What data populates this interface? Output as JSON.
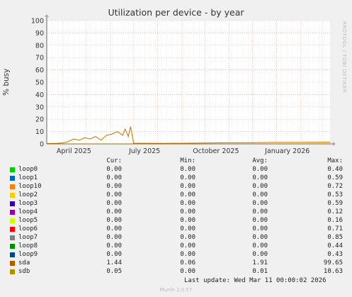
{
  "header": {
    "title": "Utilization per device - by year",
    "side_text": "RRDTOOL / TOBI OETIKER"
  },
  "chart_data": {
    "type": "line",
    "title": "Utilization per device - by year",
    "ylabel": "% busy",
    "xlabel": "",
    "ylim": [
      0,
      100
    ],
    "yticks": [
      0,
      10,
      20,
      30,
      40,
      50,
      60,
      70,
      80,
      90,
      100
    ],
    "xticks": [
      "April 2025",
      "July 2025",
      "October 2025",
      "January 2026"
    ],
    "grid": true,
    "series": [
      {
        "name": "sda",
        "color": "#cc7000",
        "x": [
          "2025-03-11",
          "2025-03-25",
          "2025-04-01",
          "2025-04-08",
          "2025-04-15",
          "2025-04-22",
          "2025-04-29",
          "2025-05-06",
          "2025-05-13",
          "2025-05-20",
          "2025-05-27",
          "2025-06-03",
          "2025-06-10",
          "2025-06-17",
          "2025-06-20",
          "2025-06-24",
          "2025-06-27",
          "2025-07-01",
          "2025-07-15",
          "2025-08-01",
          "2025-09-01",
          "2025-10-01",
          "2025-11-01",
          "2025-12-01",
          "2026-01-01",
          "2026-02-01",
          "2026-03-11"
        ],
        "values": [
          0.3,
          0.5,
          0.8,
          2,
          4,
          3,
          5,
          4,
          6,
          3,
          7,
          8,
          10,
          7,
          12,
          6,
          14,
          0.5,
          0.5,
          0.4,
          0.5,
          0.7,
          0.9,
          1.0,
          1.2,
          1.3,
          1.44
        ]
      },
      {
        "name": "sdb",
        "color": "#8f6e00",
        "x": [
          "2025-03-11",
          "2025-07-01",
          "2025-11-01",
          "2026-03-11"
        ],
        "values": [
          0.01,
          0.01,
          0.02,
          0.05
        ]
      }
    ],
    "legend": {
      "headers": {
        "cur": "Cur:",
        "min": "Min:",
        "avg": "Avg:",
        "max": "Max:"
      },
      "rows": [
        {
          "name": "loop0",
          "color": "#00cc00",
          "cur": "0.00",
          "min": "0.00",
          "avg": "0.00",
          "max": "0.40"
        },
        {
          "name": "loop1",
          "color": "#0066b3",
          "cur": "0.00",
          "min": "0.00",
          "avg": "0.00",
          "max": "0.59"
        },
        {
          "name": "loop10",
          "color": "#ff8000",
          "cur": "0.00",
          "min": "0.00",
          "avg": "0.00",
          "max": "0.72"
        },
        {
          "name": "loop2",
          "color": "#ffcc00",
          "cur": "0.00",
          "min": "0.00",
          "avg": "0.00",
          "max": "0.53"
        },
        {
          "name": "loop3",
          "color": "#330099",
          "cur": "0.00",
          "min": "0.00",
          "avg": "0.00",
          "max": "0.59"
        },
        {
          "name": "loop4",
          "color": "#990099",
          "cur": "0.00",
          "min": "0.00",
          "avg": "0.00",
          "max": "0.12"
        },
        {
          "name": "loop5",
          "color": "#ccff00",
          "cur": "0.00",
          "min": "0.00",
          "avg": "0.00",
          "max": "0.16"
        },
        {
          "name": "loop6",
          "color": "#ff0000",
          "cur": "0.00",
          "min": "0.00",
          "avg": "0.00",
          "max": "0.71"
        },
        {
          "name": "loop7",
          "color": "#808080",
          "cur": "0.00",
          "min": "0.00",
          "avg": "0.00",
          "max": "0.85"
        },
        {
          "name": "loop8",
          "color": "#008f00",
          "cur": "0.00",
          "min": "0.00",
          "avg": "0.00",
          "max": "0.44"
        },
        {
          "name": "loop9",
          "color": "#00487d",
          "cur": "0.00",
          "min": "0.00",
          "avg": "0.00",
          "max": "0.43"
        },
        {
          "name": "sda",
          "color": "#b35a00",
          "cur": "1.44",
          "min": "0.06",
          "avg": "1.91",
          "max": "99.65"
        },
        {
          "name": "sdb",
          "color": "#b38f00",
          "cur": "0.05",
          "min": "0.00",
          "avg": "0.01",
          "max": "10.63"
        }
      ]
    }
  },
  "footer": {
    "last_update": "Last update: Wed Mar 11 00:00:02 2026",
    "munin": "Munin 2.0.57"
  }
}
